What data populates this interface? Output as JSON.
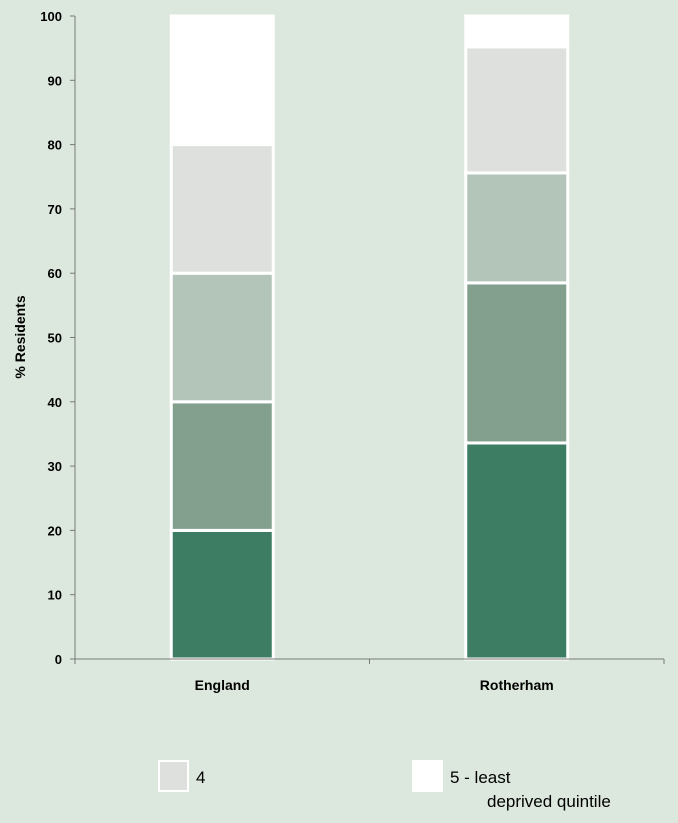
{
  "chart_data": {
    "type": "bar",
    "stacked": true,
    "categories": [
      "England",
      "Rotherham"
    ],
    "series": [
      {
        "name": "",
        "values": [
          20,
          33.6
        ],
        "color": "#3c7d64"
      },
      {
        "name": "",
        "values": [
          20,
          24.9
        ],
        "color": "#83a08f"
      },
      {
        "name": "",
        "values": [
          20,
          17.1
        ],
        "color": "#b3c4b8"
      },
      {
        "name": "4",
        "values": [
          20,
          19.6
        ],
        "color": "#dde0dc"
      },
      {
        "name": "5 - least deprived quintile",
        "values": [
          20,
          4.8
        ],
        "color": "#ffffff"
      }
    ],
    "ylabel": "% Residents",
    "xlabel": "",
    "ylim": [
      0,
      100
    ],
    "yticks": [
      0,
      10,
      20,
      30,
      40,
      50,
      60,
      70,
      80,
      90,
      100
    ],
    "legend": {
      "position": "bottom",
      "entries": [
        {
          "label_lines": [
            "4"
          ],
          "color": "#dde0dc"
        },
        {
          "label_lines": [
            "5 - least",
            "deprived quintile"
          ],
          "color": "#ffffff"
        }
      ]
    }
  }
}
